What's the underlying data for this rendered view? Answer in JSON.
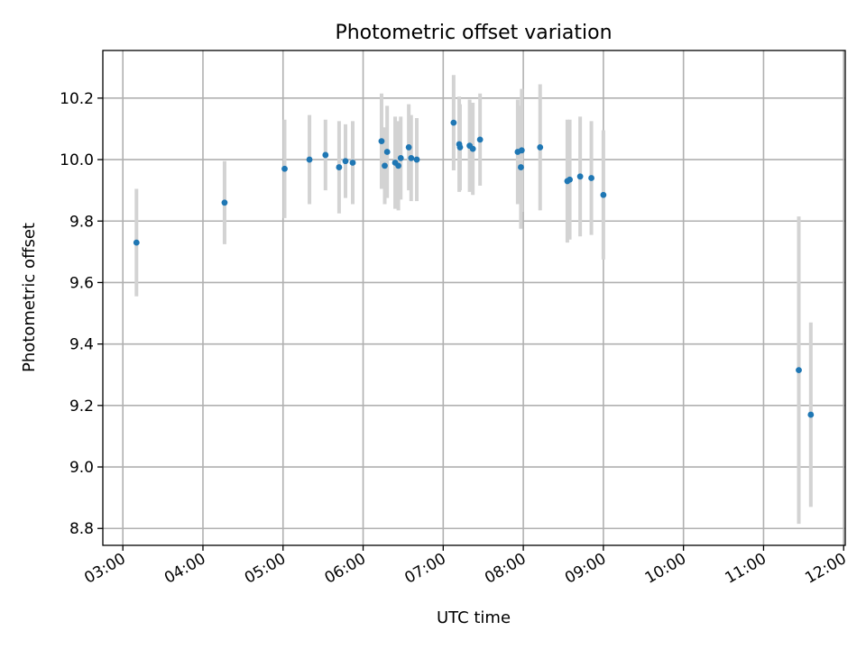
{
  "chart_data": {
    "type": "scatter",
    "title": "Photometric offset variation",
    "xlabel": "UTC time",
    "ylabel": "Photometric offset",
    "x_unit": "hours UTC",
    "xlim": [
      2.75,
      12.02
    ],
    "ylim": [
      8.745,
      10.355
    ],
    "xticks": [
      {
        "value": 3,
        "label": "03:00"
      },
      {
        "value": 4,
        "label": "04:00"
      },
      {
        "value": 5,
        "label": "05:00"
      },
      {
        "value": 6,
        "label": "06:00"
      },
      {
        "value": 7,
        "label": "07:00"
      },
      {
        "value": 8,
        "label": "08:00"
      },
      {
        "value": 9,
        "label": "09:00"
      },
      {
        "value": 10,
        "label": "10:00"
      },
      {
        "value": 11,
        "label": "11:00"
      },
      {
        "value": 12,
        "label": "12:00"
      }
    ],
    "yticks": [
      {
        "value": 8.8,
        "label": "8.8"
      },
      {
        "value": 9.0,
        "label": "9.0"
      },
      {
        "value": 9.2,
        "label": "9.2"
      },
      {
        "value": 9.4,
        "label": "9.4"
      },
      {
        "value": 9.6,
        "label": "9.6"
      },
      {
        "value": 9.8,
        "label": "9.8"
      },
      {
        "value": 10.0,
        "label": "10.0"
      },
      {
        "value": 10.2,
        "label": "10.2"
      }
    ],
    "grid": true,
    "marker_color": "#1f77b4",
    "errorbar_color": "#d3d3d3",
    "points": [
      {
        "x": 3.17,
        "y": 9.73,
        "yerr": 0.175
      },
      {
        "x": 4.27,
        "y": 9.86,
        "yerr": 0.135
      },
      {
        "x": 5.02,
        "y": 9.97,
        "yerr": 0.16
      },
      {
        "x": 5.33,
        "y": 10.0,
        "yerr": 0.145
      },
      {
        "x": 5.53,
        "y": 10.015,
        "yerr": 0.115
      },
      {
        "x": 5.7,
        "y": 9.975,
        "yerr": 0.15
      },
      {
        "x": 5.78,
        "y": 9.995,
        "yerr": 0.12
      },
      {
        "x": 5.87,
        "y": 9.99,
        "yerr": 0.135
      },
      {
        "x": 6.23,
        "y": 10.06,
        "yerr": 0.155
      },
      {
        "x": 6.27,
        "y": 9.98,
        "yerr": 0.125
      },
      {
        "x": 6.3,
        "y": 10.025,
        "yerr": 0.15
      },
      {
        "x": 6.4,
        "y": 9.99,
        "yerr": 0.15
      },
      {
        "x": 6.44,
        "y": 9.98,
        "yerr": 0.145
      },
      {
        "x": 6.47,
        "y": 10.005,
        "yerr": 0.135
      },
      {
        "x": 6.57,
        "y": 10.04,
        "yerr": 0.14
      },
      {
        "x": 6.6,
        "y": 10.005,
        "yerr": 0.14
      },
      {
        "x": 6.67,
        "y": 10.0,
        "yerr": 0.135
      },
      {
        "x": 7.13,
        "y": 10.12,
        "yerr": 0.155
      },
      {
        "x": 7.2,
        "y": 10.05,
        "yerr": 0.155
      },
      {
        "x": 7.21,
        "y": 10.04,
        "yerr": 0.14
      },
      {
        "x": 7.33,
        "y": 10.045,
        "yerr": 0.15
      },
      {
        "x": 7.37,
        "y": 10.035,
        "yerr": 0.15
      },
      {
        "x": 7.46,
        "y": 10.065,
        "yerr": 0.15
      },
      {
        "x": 7.93,
        "y": 10.025,
        "yerr": 0.17
      },
      {
        "x": 7.98,
        "y": 10.03,
        "yerr": 0.2
      },
      {
        "x": 7.97,
        "y": 9.975,
        "yerr": 0.2
      },
      {
        "x": 8.21,
        "y": 10.04,
        "yerr": 0.205
      },
      {
        "x": 8.55,
        "y": 9.93,
        "yerr": 0.2
      },
      {
        "x": 8.58,
        "y": 9.935,
        "yerr": 0.195
      },
      {
        "x": 8.71,
        "y": 9.945,
        "yerr": 0.195
      },
      {
        "x": 8.85,
        "y": 9.94,
        "yerr": 0.185
      },
      {
        "x": 9.0,
        "y": 9.885,
        "yerr": 0.21
      },
      {
        "x": 11.44,
        "y": 9.315,
        "yerr": 0.5
      },
      {
        "x": 11.59,
        "y": 9.17,
        "yerr": 0.3
      }
    ]
  }
}
